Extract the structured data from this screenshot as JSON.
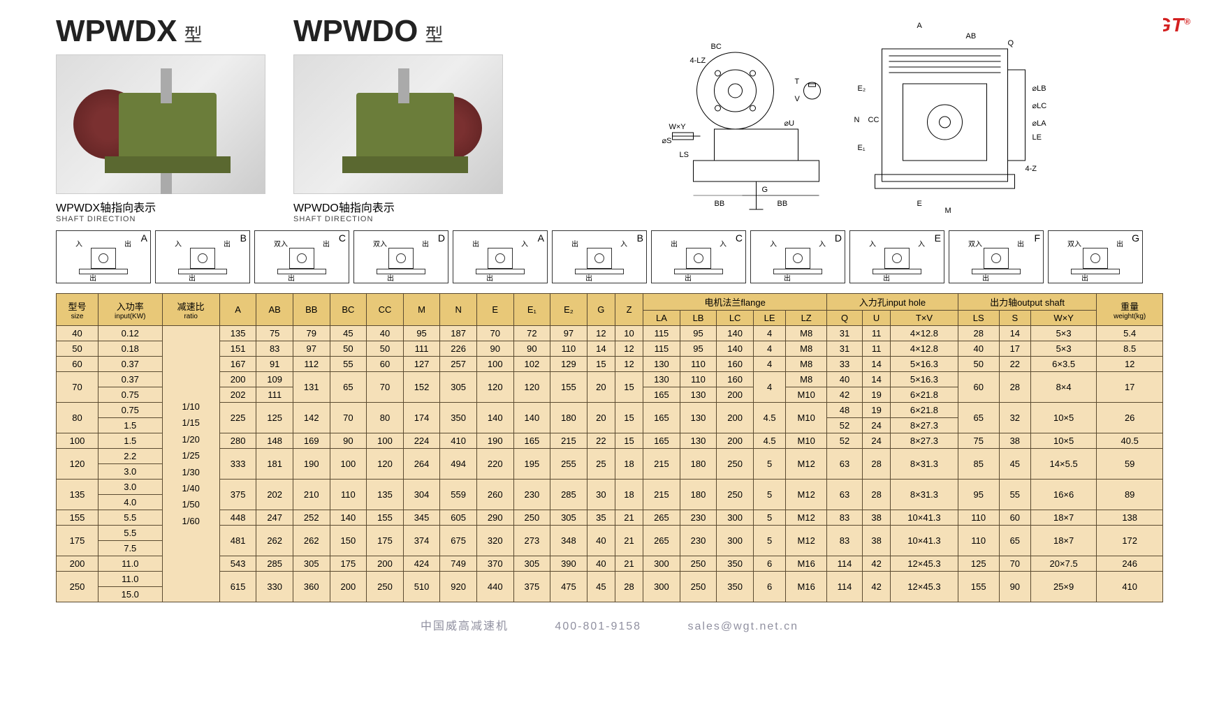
{
  "brand": "WGT",
  "models": [
    {
      "name": "WPWDX",
      "type_suffix": "型",
      "shaft_label": "WPWDX轴指向表示",
      "shaft_en": "SHAFT DIRECTION"
    },
    {
      "name": "WPWDO",
      "type_suffix": "型",
      "shaft_label": "WPWDO轴指向表示",
      "shaft_en": "SHAFT DIRECTION"
    }
  ],
  "direction_codes_left": [
    "A",
    "B",
    "C",
    "D"
  ],
  "direction_codes_right": [
    "A",
    "B",
    "C",
    "D",
    "E",
    "F",
    "G"
  ],
  "direction_markers": {
    "in": "入",
    "out": "出",
    "double_in": "双入"
  },
  "table": {
    "headers_top": {
      "size": {
        "cn": "型号",
        "en": "size"
      },
      "input": {
        "cn": "入功率",
        "en": "input(KW)"
      },
      "ratio": {
        "cn": "减速比",
        "en": "ratio"
      },
      "dims": [
        "A",
        "AB",
        "BB",
        "BC",
        "CC",
        "M",
        "N",
        "E",
        "E₁",
        "E₂",
        "G",
        "Z"
      ],
      "flange": {
        "cn": "电机法兰flange",
        "cols": [
          "LA",
          "LB",
          "LC",
          "LE",
          "LZ"
        ]
      },
      "input_hole": {
        "cn": "入力孔input hole",
        "cols": [
          "Q",
          "U",
          "T×V"
        ]
      },
      "output_shaft": {
        "cn": "出力轴output shaft",
        "cols": [
          "LS",
          "S",
          "W×Y"
        ]
      },
      "weight": {
        "cn": "重量",
        "en": "weight(kg)"
      }
    },
    "ratio_values": "1/10\n1/15\n1/20\n1/25\n1/30\n1/40\n1/50\n1/60",
    "rows": [
      {
        "size": "40",
        "input": [
          "0.12"
        ],
        "A": "135",
        "AB": "75",
        "BB": "79",
        "BC": "45",
        "CC": "40",
        "M": "95",
        "N": "187",
        "E": "70",
        "E1": "72",
        "E2": "97",
        "G": "12",
        "Z": "10",
        "LA": "115",
        "LB": "95",
        "LC": "140",
        "LE": "4",
        "LZ": "M8",
        "Q": "31",
        "U": "11",
        "TV": "4×12.8",
        "LS": "28",
        "S": "14",
        "WY": "5×3",
        "wt": "5.4"
      },
      {
        "size": "50",
        "input": [
          "0.18"
        ],
        "A": "151",
        "AB": "83",
        "BB": "97",
        "BC": "50",
        "CC": "50",
        "M": "111",
        "N": "226",
        "E": "90",
        "E1": "90",
        "E2": "110",
        "G": "14",
        "Z": "12",
        "LA": "115",
        "LB": "95",
        "LC": "140",
        "LE": "4",
        "LZ": "M8",
        "Q": "31",
        "U": "11",
        "TV": "4×12.8",
        "LS": "40",
        "S": "17",
        "WY": "5×3",
        "wt": "8.5"
      },
      {
        "size": "60",
        "input": [
          "0.37"
        ],
        "A": "167",
        "AB": "91",
        "BB": "112",
        "BC": "55",
        "CC": "60",
        "M": "127",
        "N": "257",
        "E": "100",
        "E1": "102",
        "E2": "129",
        "G": "15",
        "Z": "12",
        "LA": "130",
        "LB": "110",
        "LC": "160",
        "LE": "4",
        "LZ": "M8",
        "Q": "33",
        "U": "14",
        "TV": "5×16.3",
        "LS": "50",
        "S": "22",
        "WY": "6×3.5",
        "wt": "12"
      },
      {
        "size": "70",
        "input": [
          "0.37",
          "0.75"
        ],
        "A": [
          "200",
          "202"
        ],
        "AB": [
          "109",
          "111"
        ],
        "BB": "131",
        "BC": "65",
        "CC": "70",
        "M": "152",
        "N": "305",
        "E": "120",
        "E1": "120",
        "E2": "155",
        "G": "20",
        "Z": "15",
        "LA": [
          "130",
          "165"
        ],
        "LB": [
          "110",
          "130"
        ],
        "LC": [
          "160",
          "200"
        ],
        "LE": "4",
        "LZ": [
          "M8",
          "M10"
        ],
        "Q": [
          "40",
          "42"
        ],
        "U": [
          "14",
          "19"
        ],
        "TV": [
          "5×16.3",
          "6×21.8"
        ],
        "LS": "60",
        "S": "28",
        "WY": "8×4",
        "wt": "17"
      },
      {
        "size": "80",
        "input": [
          "0.75",
          "1.5"
        ],
        "A": "225",
        "AB": "125",
        "BB": "142",
        "BC": "70",
        "CC": "80",
        "M": "174",
        "N": "350",
        "E": "140",
        "E1": "140",
        "E2": "180",
        "G": "20",
        "Z": "15",
        "LA": "165",
        "LB": "130",
        "LC": "200",
        "LE": "4.5",
        "LZ": "M10",
        "Q": [
          "48",
          "52"
        ],
        "U": [
          "19",
          "24"
        ],
        "TV": [
          "6×21.8",
          "8×27.3"
        ],
        "LS": "65",
        "S": "32",
        "WY": "10×5",
        "wt": "26"
      },
      {
        "size": "100",
        "input": [
          "1.5"
        ],
        "A": "280",
        "AB": "148",
        "BB": "169",
        "BC": "90",
        "CC": "100",
        "M": "224",
        "N": "410",
        "E": "190",
        "E1": "165",
        "E2": "215",
        "G": "22",
        "Z": "15",
        "LA": "165",
        "LB": "130",
        "LC": "200",
        "LE": "4.5",
        "LZ": "M10",
        "Q": "52",
        "U": "24",
        "TV": "8×27.3",
        "LS": "75",
        "S": "38",
        "WY": "10×5",
        "wt": "40.5"
      },
      {
        "size": "120",
        "input": [
          "2.2",
          "3.0"
        ],
        "A": "333",
        "AB": "181",
        "BB": "190",
        "BC": "100",
        "CC": "120",
        "M": "264",
        "N": "494",
        "E": "220",
        "E1": "195",
        "E2": "255",
        "G": "25",
        "Z": "18",
        "LA": "215",
        "LB": "180",
        "LC": "250",
        "LE": "5",
        "LZ": "M12",
        "Q": "63",
        "U": "28",
        "TV": "8×31.3",
        "LS": "85",
        "S": "45",
        "WY": "14×5.5",
        "wt": "59"
      },
      {
        "size": "135",
        "input": [
          "3.0",
          "4.0"
        ],
        "A": "375",
        "AB": "202",
        "BB": "210",
        "BC": "110",
        "CC": "135",
        "M": "304",
        "N": "559",
        "E": "260",
        "E1": "230",
        "E2": "285",
        "G": "30",
        "Z": "18",
        "LA": "215",
        "LB": "180",
        "LC": "250",
        "LE": "5",
        "LZ": "M12",
        "Q": "63",
        "U": "28",
        "TV": "8×31.3",
        "LS": "95",
        "S": "55",
        "WY": "16×6",
        "wt": "89"
      },
      {
        "size": "155",
        "input": [
          "5.5"
        ],
        "A": "448",
        "AB": "247",
        "BB": "252",
        "BC": "140",
        "CC": "155",
        "M": "345",
        "N": "605",
        "E": "290",
        "E1": "250",
        "E2": "305",
        "G": "35",
        "Z": "21",
        "LA": "265",
        "LB": "230",
        "LC": "300",
        "LE": "5",
        "LZ": "M12",
        "Q": "83",
        "U": "38",
        "TV": "10×41.3",
        "LS": "110",
        "S": "60",
        "WY": "18×7",
        "wt": "138"
      },
      {
        "size": "175",
        "input": [
          "5.5",
          "7.5"
        ],
        "A": "481",
        "AB": "262",
        "BB": "262",
        "BC": "150",
        "CC": "175",
        "M": "374",
        "N": "675",
        "E": "320",
        "E1": "273",
        "E2": "348",
        "G": "40",
        "Z": "21",
        "LA": "265",
        "LB": "230",
        "LC": "300",
        "LE": "5",
        "LZ": "M12",
        "Q": "83",
        "U": "38",
        "TV": "10×41.3",
        "LS": "110",
        "S": "65",
        "WY": "18×7",
        "wt": "172"
      },
      {
        "size": "200",
        "input": [
          "11.0"
        ],
        "A": "543",
        "AB": "285",
        "BB": "305",
        "BC": "175",
        "CC": "200",
        "M": "424",
        "N": "749",
        "E": "370",
        "E1": "305",
        "E2": "390",
        "G": "40",
        "Z": "21",
        "LA": "300",
        "LB": "250",
        "LC": "350",
        "LE": "6",
        "LZ": "M16",
        "Q": "114",
        "U": "42",
        "TV": "12×45.3",
        "LS": "125",
        "S": "70",
        "WY": "20×7.5",
        "wt": "246"
      },
      {
        "size": "250",
        "input": [
          "11.0",
          "15.0"
        ],
        "A": "615",
        "AB": "330",
        "BB": "360",
        "BC": "200",
        "CC": "250",
        "M": "510",
        "N": "920",
        "E": "440",
        "E1": "375",
        "E2": "475",
        "G": "45",
        "Z": "28",
        "LA": "300",
        "LB": "250",
        "LC": "350",
        "LE": "6",
        "LZ": "M16",
        "Q": "114",
        "U": "42",
        "TV": "12×45.3",
        "LS": "155",
        "S": "90",
        "WY": "25×9",
        "wt": "410"
      }
    ]
  },
  "drawing_labels": [
    "A",
    "AB",
    "Q",
    "BC",
    "4-LZ",
    "T",
    "V",
    "U",
    "W×Y",
    "S",
    "LS",
    "BB",
    "G",
    "E₂",
    "N",
    "CC",
    "E₁",
    "LA",
    "LB",
    "LC",
    "LE",
    "4-Z",
    "E",
    "M",
    "BB"
  ],
  "footer": {
    "company": "中国威高减速机",
    "phone": "400-801-9158",
    "email": "sales@wgt.net.cn"
  },
  "colors": {
    "table_header_bg": "#e8c878",
    "table_cell_bg": "#f5e0b8",
    "table_border": "#5a4a30",
    "brand_red": "#d32020",
    "reducer_green": "#6b7d3a",
    "reducer_flange": "#7a3030"
  }
}
